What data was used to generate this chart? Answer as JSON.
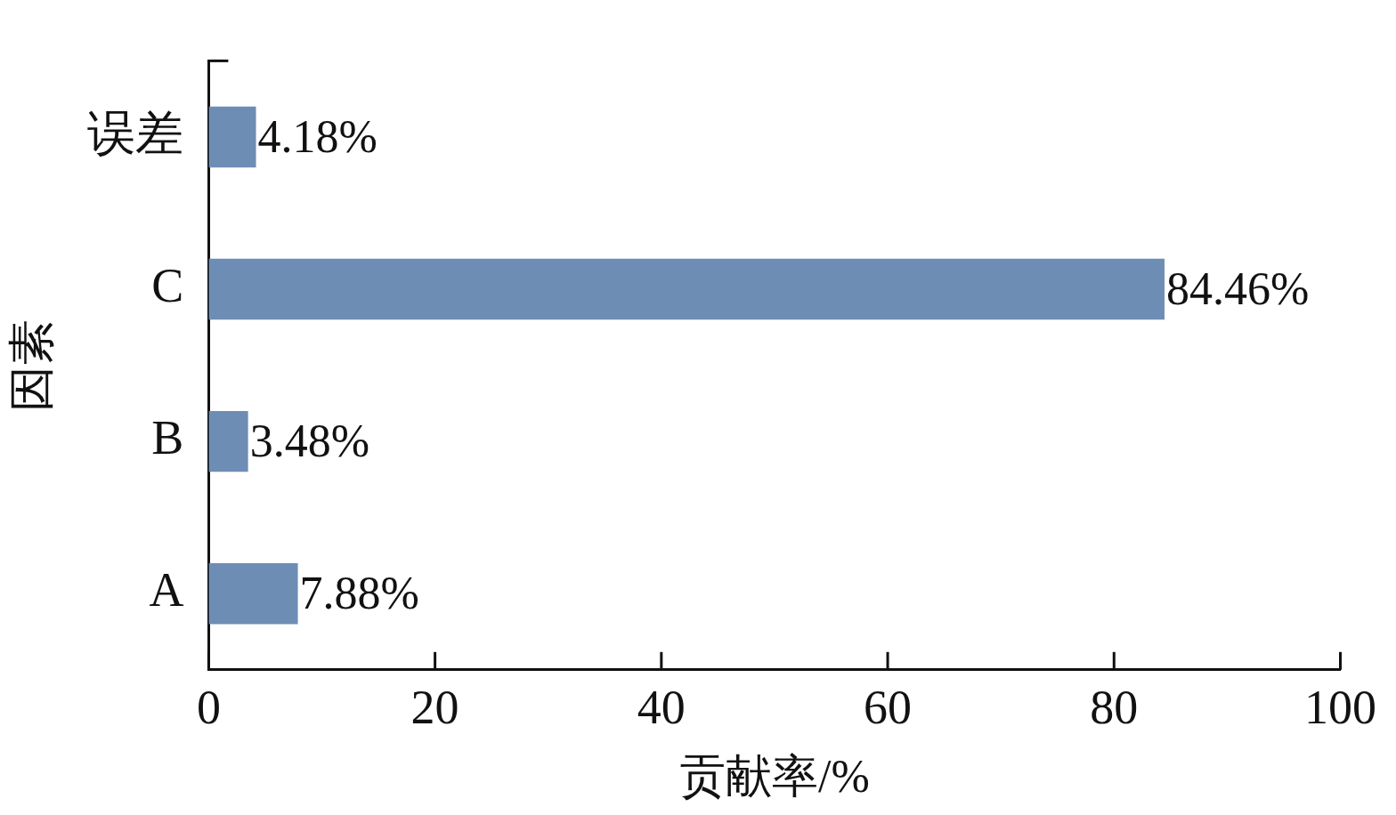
{
  "chart_data": {
    "type": "bar",
    "orientation": "horizontal",
    "xlabel": "贡献率/%",
    "ylabel": "因素",
    "categories": [
      "误差",
      "C",
      "B",
      "A"
    ],
    "values": [
      4.18,
      84.46,
      3.48,
      7.88
    ],
    "value_labels": [
      "4.18%",
      "84.46%",
      "3.48%",
      "7.88%"
    ],
    "color": "#6d8db5",
    "xlim": [
      0,
      100
    ],
    "xticks": [
      0,
      20,
      40,
      60,
      80,
      100
    ],
    "grid": false,
    "legend": false
  }
}
